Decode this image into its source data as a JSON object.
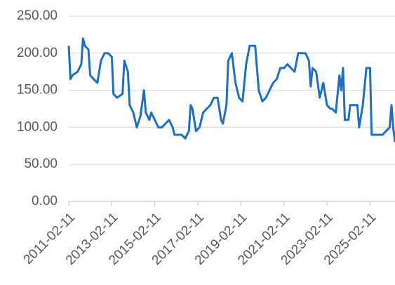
{
  "chart_data": {
    "type": "line",
    "x": [
      "2011-02-11",
      "2011-03-11",
      "2011-04-11",
      "2011-07-11",
      "2011-09-11",
      "2011-10-11",
      "2011-11-11",
      "2012-01-11",
      "2012-02-11",
      "2012-04-11",
      "2012-06-11",
      "2012-08-11",
      "2012-10-11",
      "2012-12-11",
      "2013-02-11",
      "2013-03-11",
      "2013-05-11",
      "2013-08-11",
      "2013-09-11",
      "2013-11-11",
      "2013-12-11",
      "2014-02-11",
      "2014-04-11",
      "2014-06-11",
      "2014-08-11",
      "2014-09-11",
      "2014-11-11",
      "2014-12-11",
      "2015-02-11",
      "2015-04-11",
      "2015-06-11",
      "2015-08-11",
      "2015-10-11",
      "2015-12-11",
      "2016-01-11",
      "2016-05-11",
      "2016-07-11",
      "2016-09-11",
      "2016-10-11",
      "2016-11-11",
      "2017-01-11",
      "2017-03-11",
      "2017-05-11",
      "2017-07-11",
      "2017-09-11",
      "2017-11-11",
      "2018-01-11",
      "2018-03-11",
      "2018-04-11",
      "2018-06-11",
      "2018-07-11",
      "2018-09-11",
      "2018-11-11",
      "2019-01-11",
      "2019-03-11",
      "2019-05-11",
      "2019-07-11",
      "2019-10-11",
      "2019-12-11",
      "2020-02-11",
      "2020-04-11",
      "2020-06-11",
      "2020-08-11",
      "2020-10-11",
      "2020-12-11",
      "2021-02-11",
      "2021-04-11",
      "2021-06-11",
      "2021-08-11",
      "2021-10-11",
      "2022-02-11",
      "2022-04-11",
      "2022-05-11",
      "2022-06-11",
      "2022-08-11",
      "2022-10-11",
      "2022-12-11",
      "2023-02-11",
      "2023-04-11",
      "2023-05-11",
      "2023-07-11",
      "2023-09-11",
      "2023-10-11",
      "2023-11-11",
      "2023-12-11",
      "2024-02-11",
      "2024-03-11",
      "2024-05-11",
      "2024-07-11",
      "2024-08-11",
      "2024-10-11",
      "2024-12-11",
      "2025-02-11",
      "2025-03-11",
      "2025-09-11",
      "2025-11-11",
      "2026-01-11",
      "2026-02-11",
      "2026-03-11",
      "2026-04-11"
    ],
    "series": [
      {
        "color": "#1f6fbf",
        "values": [
          210,
          165,
          170,
          175,
          185,
          220,
          210,
          205,
          170,
          165,
          160,
          190,
          200,
          200,
          195,
          145,
          140,
          145,
          190,
          175,
          130,
          120,
          100,
          115,
          150,
          120,
          110,
          120,
          110,
          100,
          100,
          105,
          110,
          100,
          90,
          90,
          85,
          95,
          130,
          125,
          95,
          100,
          120,
          125,
          130,
          140,
          140,
          110,
          105,
          130,
          190,
          200,
          160,
          140,
          135,
          185,
          210,
          210,
          150,
          135,
          140,
          150,
          160,
          165,
          180,
          180,
          185,
          180,
          175,
          200,
          200,
          190,
          155,
          180,
          175,
          140,
          160,
          130,
          125,
          125,
          120,
          170,
          150,
          180,
          110,
          110,
          130,
          130,
          130,
          100,
          130,
          180,
          180,
          90,
          90,
          95,
          100,
          130,
          100,
          80
        ]
      }
    ],
    "xlim": [
      "2011-02-11",
      "2026-04-11"
    ],
    "xticks": [
      "2011-02-11",
      "2013-02-11",
      "2015-02-11",
      "2017-02-11",
      "2019-02-11",
      "2021-02-11",
      "2023-02-11",
      "2025-02-11"
    ],
    "ylim": [
      0,
      250
    ],
    "yticks": [
      {
        "value": 0,
        "label": "0.00"
      },
      {
        "value": 50,
        "label": "50.00"
      },
      {
        "value": 100,
        "label": "100.00"
      },
      {
        "value": 150,
        "label": "150.00"
      },
      {
        "value": 200,
        "label": "200.00"
      },
      {
        "value": 250,
        "label": "250.00"
      }
    ],
    "grid": true
  }
}
